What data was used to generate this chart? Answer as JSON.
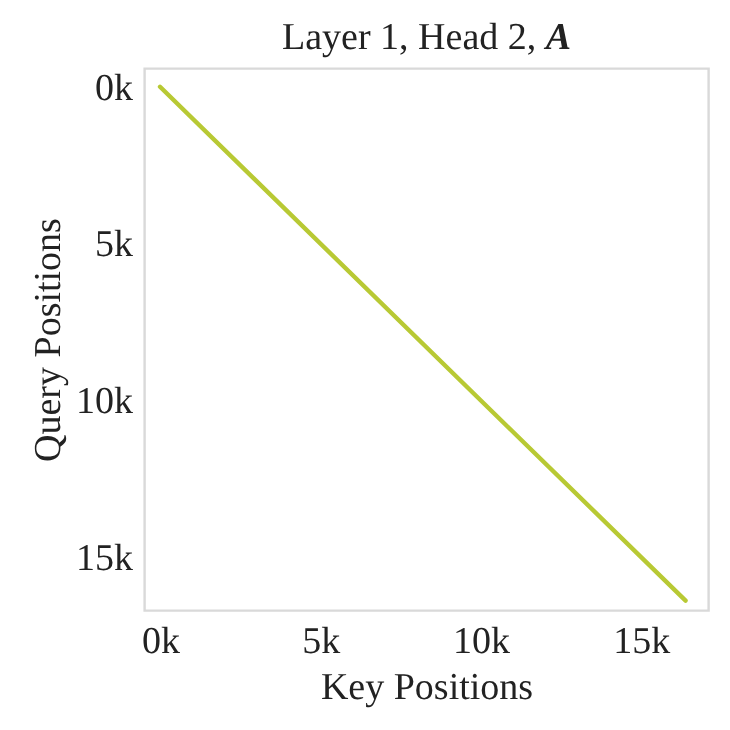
{
  "chart_data": {
    "type": "line",
    "title": "Layer 1, Head 2, A",
    "xlabel": "Key Positions",
    "ylabel": "Query Positions",
    "x": [
      0,
      16400
    ],
    "series": [
      {
        "color": "#b8c934",
        "values": [
          0,
          16400
        ]
      }
    ],
    "xlim": [
      -500,
      17100
    ],
    "ylim": [
      16700,
      -600
    ],
    "xticks": [
      {
        "value": 0,
        "label": "0k"
      },
      {
        "value": 5000,
        "label": "5k"
      },
      {
        "value": 10000,
        "label": "10k"
      },
      {
        "value": 15000,
        "label": "15k"
      }
    ],
    "yticks": [
      {
        "value": 0,
        "label": "0k"
      },
      {
        "value": 5000,
        "label": "5k"
      },
      {
        "value": 10000,
        "label": "10k"
      },
      {
        "value": 15000,
        "label": "15k"
      }
    ],
    "grid": false,
    "marker": "none",
    "line_style": "solid"
  }
}
